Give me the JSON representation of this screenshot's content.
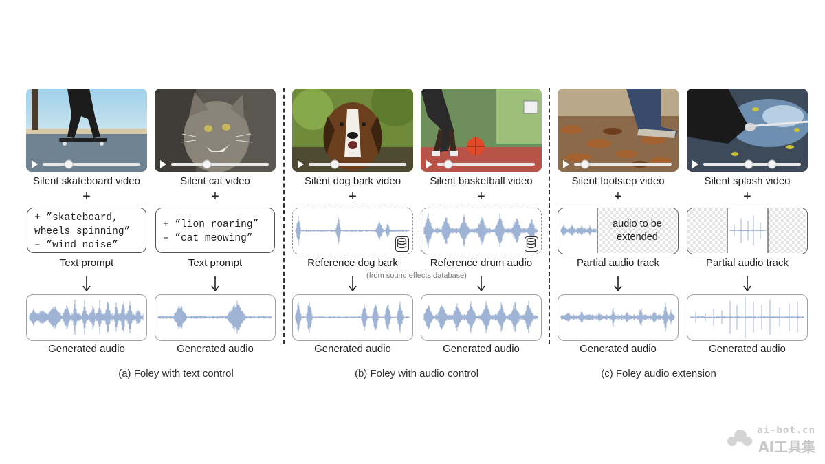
{
  "panels": [
    {
      "caption": "(a) Foley with text control",
      "columns": [
        {
          "video_label": "Silent skateboard video",
          "prompt_lines": [
            "+ ”skateboard,",
            "wheels spinning”",
            "– ”wind noise”"
          ],
          "input_label": "Text prompt",
          "output_label": "Generated audio"
        },
        {
          "video_label": "Silent cat video",
          "prompt_lines": [
            "+ ”lion roaring”",
            "– ”cat meowing”"
          ],
          "input_label": "Text prompt",
          "output_label": "Generated audio"
        }
      ]
    },
    {
      "caption": "(b) Foley with audio control",
      "note": "(from sound effects database)",
      "columns": [
        {
          "video_label": "Silent dog bark video",
          "input_label": "Reference dog bark",
          "output_label": "Generated audio"
        },
        {
          "video_label": "Silent basketball video",
          "input_label": "Reference drum audio",
          "output_label": "Generated audio"
        }
      ]
    },
    {
      "caption": "(c) Foley audio extension",
      "columns": [
        {
          "video_label": "Silent footstep video",
          "extend_text": [
            "audio to be",
            "extended"
          ],
          "input_label": "Partial audio track",
          "output_label": "Generated audio"
        },
        {
          "video_label": "Silent splash video",
          "input_label": "Partial audio track",
          "output_label": "Generated audio"
        }
      ]
    }
  ],
  "plus_symbol": "+",
  "watermark": {
    "line1": "ai-bot.cn",
    "line2": "AI工具集"
  },
  "colors": {
    "wave": "#9fb3d4",
    "border": "#4d5358",
    "dashed": "#8a8f94"
  }
}
